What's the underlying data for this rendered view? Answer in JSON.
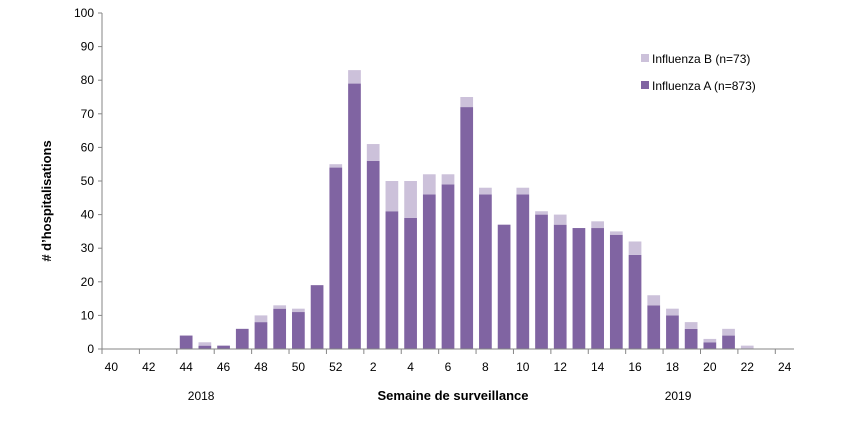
{
  "chart_data": {
    "type": "bar",
    "stacked": true,
    "xlabel": "Semaine de surveillance",
    "ylabel": "# d’hospitalisations",
    "ylim": [
      0,
      100
    ],
    "yticks": [
      0,
      10,
      20,
      30,
      40,
      50,
      60,
      70,
      80,
      90,
      100
    ],
    "categories": [
      "40",
      "41",
      "42",
      "43",
      "44",
      "45",
      "46",
      "47",
      "48",
      "49",
      "50",
      "51",
      "52",
      "1",
      "2",
      "3",
      "4",
      "5",
      "6",
      "7",
      "8",
      "9",
      "10",
      "11",
      "12",
      "13",
      "14",
      "15",
      "16",
      "17",
      "18",
      "19",
      "20",
      "21",
      "22",
      "23",
      "24"
    ],
    "xtick_labels": [
      "40",
      "42",
      "44",
      "46",
      "48",
      "50",
      "52",
      "2",
      "4",
      "6",
      "8",
      "10",
      "12",
      "14",
      "16",
      "18",
      "20",
      "22",
      "24"
    ],
    "year_labels": [
      "2018",
      "2019"
    ],
    "series": [
      {
        "name": "Influenza A (n=873)",
        "color": "#8064a2",
        "values": [
          0,
          0,
          0,
          0,
          4,
          1,
          1,
          6,
          8,
          12,
          11,
          19,
          54,
          79,
          56,
          41,
          39,
          46,
          49,
          72,
          46,
          37,
          46,
          40,
          37,
          36,
          36,
          34,
          28,
          13,
          10,
          6,
          2,
          4,
          0,
          0,
          0
        ]
      },
      {
        "name": "Influenza B (n=73)",
        "color": "#ccc1da",
        "values": [
          0,
          0,
          0,
          0,
          0,
          1,
          0,
          0,
          2,
          1,
          1,
          0,
          1,
          4,
          5,
          9,
          11,
          6,
          3,
          3,
          2,
          0,
          2,
          1,
          3,
          0,
          2,
          1,
          4,
          3,
          2,
          2,
          1,
          2,
          1,
          0,
          0
        ]
      }
    ],
    "legend": {
      "position": "top-right",
      "entries": [
        "Influenza B (n=73)",
        "Influenza A (n=873)"
      ]
    },
    "grid": false
  }
}
